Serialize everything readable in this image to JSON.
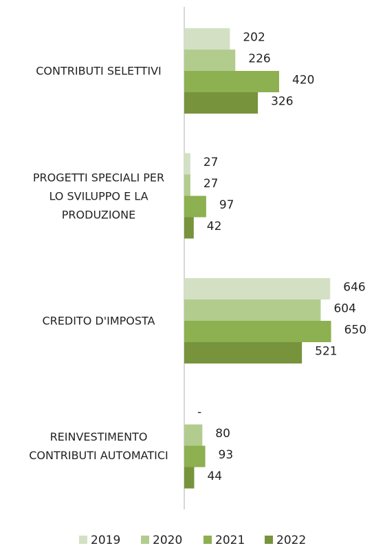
{
  "chart_data": {
    "type": "bar",
    "orientation": "horizontal",
    "categories": [
      "CONTRIBUTI SELETTIVI",
      "PROGETTI SPECIALI PER LO SVILUPPO E LA PRODUZIONE",
      "CREDITO D'IMPOSTA",
      "REINVESTIMENTO CONTRIBUTI AUTOMATICI"
    ],
    "series": [
      {
        "name": "2019",
        "color": "#d3e0c4",
        "values": [
          202,
          27,
          646,
          null
        ],
        "value_labels": [
          "202",
          "27",
          "646",
          "-"
        ]
      },
      {
        "name": "2020",
        "color": "#b2cc8e",
        "values": [
          226,
          27,
          604,
          80
        ]
      },
      {
        "name": "2021",
        "color": "#8db050",
        "values": [
          420,
          97,
          650,
          93
        ]
      },
      {
        "name": "2022",
        "color": "#77933c",
        "values": [
          326,
          42,
          521,
          44
        ]
      }
    ],
    "xlim": [
      0,
      700
    ],
    "legend": "bottom"
  }
}
